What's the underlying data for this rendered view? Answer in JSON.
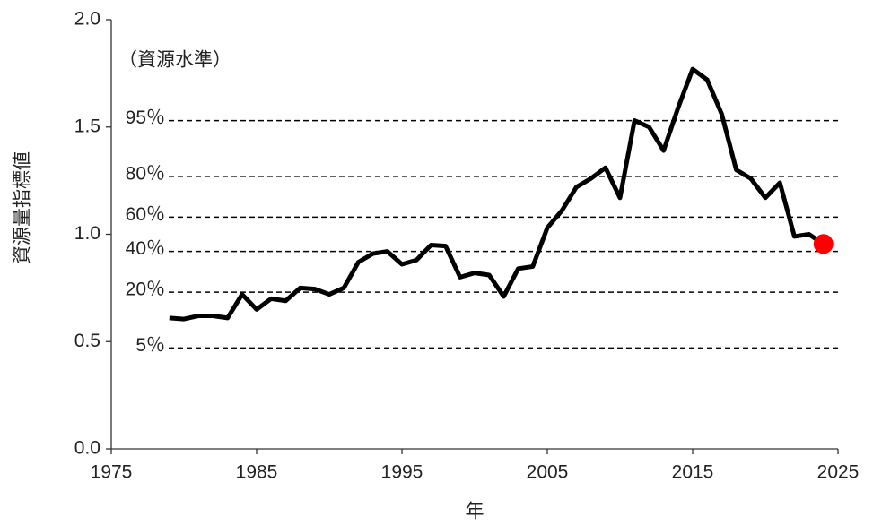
{
  "chart_data": {
    "type": "line",
    "annotation": "（資源水準）",
    "y_label": "資源量指標値",
    "x_label": "年",
    "x": [
      1979,
      1980,
      1981,
      1982,
      1983,
      1984,
      1985,
      1986,
      1987,
      1988,
      1989,
      1990,
      1991,
      1992,
      1993,
      1994,
      1995,
      1996,
      1997,
      1998,
      1999,
      2000,
      2001,
      2002,
      2003,
      2004,
      2005,
      2006,
      2007,
      2008,
      2009,
      2010,
      2011,
      2012,
      2013,
      2014,
      2015,
      2016,
      2017,
      2018,
      2019,
      2020,
      2021,
      2022,
      2023,
      2024
    ],
    "values": [
      0.61,
      0.605,
      0.62,
      0.62,
      0.61,
      0.72,
      0.65,
      0.7,
      0.69,
      0.75,
      0.745,
      0.72,
      0.75,
      0.87,
      0.91,
      0.92,
      0.86,
      0.88,
      0.95,
      0.945,
      0.8,
      0.82,
      0.81,
      0.71,
      0.84,
      0.85,
      1.03,
      1.11,
      1.22,
      1.26,
      1.31,
      1.17,
      1.53,
      1.5,
      1.39,
      1.59,
      1.77,
      1.72,
      1.56,
      1.3,
      1.26,
      1.17,
      1.24,
      0.99,
      1.0,
      0.955
    ],
    "color": "#000000",
    "highlight_color": "#ff0000",
    "reference_lines": [
      {
        "value": 1.53,
        "label": "95％"
      },
      {
        "value": 1.27,
        "label": "80％"
      },
      {
        "value": 1.08,
        "label": "60％"
      },
      {
        "value": 0.92,
        "label": "40％"
      },
      {
        "value": 0.73,
        "label": "20％"
      },
      {
        "value": 0.47,
        "label": "5％"
      }
    ],
    "xlim": [
      1975,
      2025
    ],
    "xticks": [
      1975,
      1985,
      1995,
      2005,
      2015,
      2025
    ],
    "ylim": [
      0,
      2
    ],
    "yticks": [
      {
        "value": 0,
        "label": "0.0"
      },
      {
        "value": 0.5,
        "label": "0.5"
      },
      {
        "value": 1,
        "label": "1.0"
      },
      {
        "value": 1.5,
        "label": "1.5"
      },
      {
        "value": 2,
        "label": "2.0"
      }
    ]
  }
}
